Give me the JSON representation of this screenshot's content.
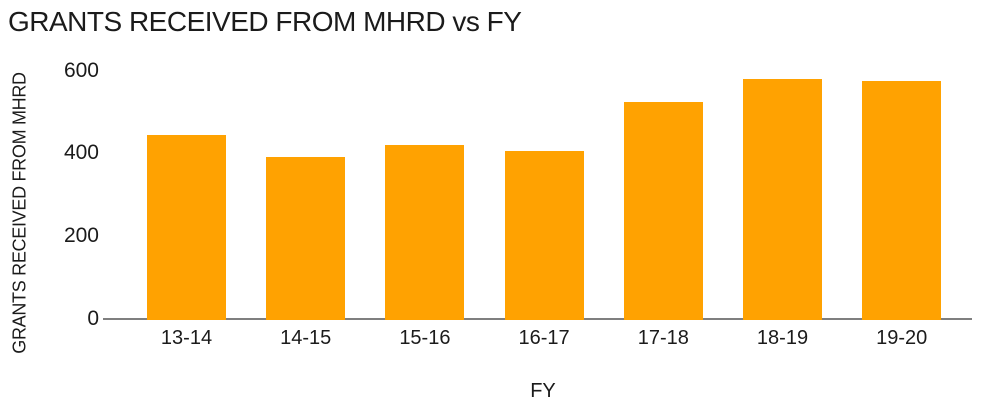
{
  "chart_data": {
    "type": "bar",
    "title": "GRANTS RECEIVED FROM MHRD vs FY",
    "xlabel": "FY",
    "ylabel": "GRANTS RECEIVED FROM MHRD",
    "categories": [
      "13-14",
      "14-15",
      "15-16",
      "16-17",
      "17-18",
      "18-19",
      "19-20"
    ],
    "values": [
      445,
      390,
      420,
      405,
      525,
      580,
      575
    ],
    "ylim": [
      0,
      600
    ],
    "yticks": [
      0,
      200,
      400,
      600
    ],
    "grid": false,
    "legend": false,
    "bar_color": "#FFA201",
    "axis_line_color": "#7F7F7F",
    "text_color": "#1B1B1B",
    "background_color": "#FFFFFF"
  }
}
